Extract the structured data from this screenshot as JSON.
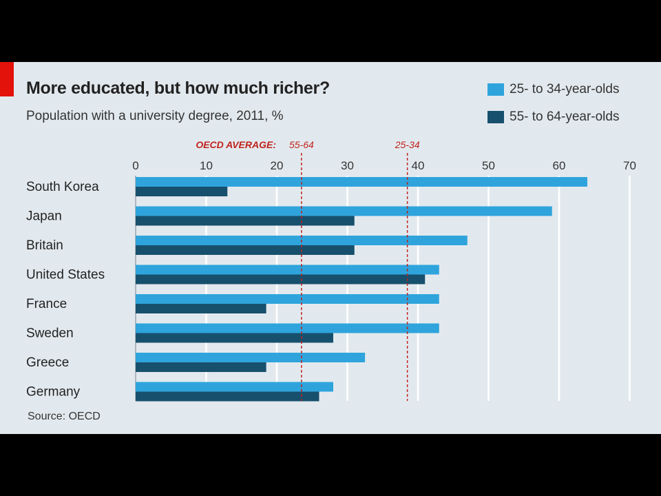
{
  "title": "More educated, but how much richer?",
  "subtitle": "Population with a university degree, 2011, %",
  "source": "Source: OECD",
  "legend": [
    {
      "label": "25- to 34-year-olds",
      "color": "#2fa4dc"
    },
    {
      "label": "55- to 64-year-olds",
      "color": "#17506d"
    }
  ],
  "oecd": {
    "heading": "OECD AVERAGE:",
    "labels": [
      "55-64",
      "25-34"
    ],
    "values": [
      23.5,
      38.5
    ],
    "color": "#c0221c"
  },
  "chart_data": {
    "type": "bar",
    "orientation": "horizontal",
    "title": "More educated, but how much richer?",
    "subtitle": "Population with a university degree, 2011, %",
    "categories": [
      "South Korea",
      "Japan",
      "Britain",
      "United States",
      "France",
      "Sweden",
      "Greece",
      "Germany"
    ],
    "series": [
      {
        "name": "25- to 34-year-olds",
        "color": "#2fa4dc",
        "values": [
          64,
          59,
          47,
          43,
          43,
          43,
          32.5,
          28
        ]
      },
      {
        "name": "55- to 64-year-olds",
        "color": "#17506d",
        "values": [
          13,
          31,
          31,
          41,
          18.5,
          28,
          18.5,
          26
        ]
      }
    ],
    "xticks": [
      0,
      10,
      20,
      30,
      40,
      50,
      60,
      70
    ],
    "xlim": [
      0,
      70
    ],
    "grid": true,
    "legend_position": "top-right",
    "reference_lines": [
      {
        "label": "55-64",
        "value": 23.5
      },
      {
        "label": "25-34",
        "value": 38.5
      }
    ]
  }
}
